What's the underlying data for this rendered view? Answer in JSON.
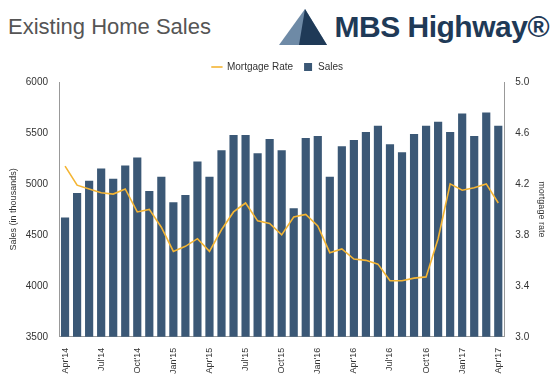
{
  "chart_data": {
    "type": "bar",
    "title": "Existing Home Sales",
    "logo": "MBS Highway®",
    "categories": [
      "Apr'14",
      null,
      null,
      "Jul'14",
      null,
      null,
      "Oct'14",
      null,
      null,
      "Jan'15",
      null,
      null,
      "Apr'15",
      null,
      null,
      "Jul'15",
      null,
      null,
      "Oct'15",
      null,
      null,
      "Jan'16",
      null,
      null,
      "Apr'16",
      null,
      null,
      "Jul'16",
      null,
      null,
      "Oct'16",
      null,
      null,
      "Jan'17",
      null,
      null,
      "Apr'17"
    ],
    "series": [
      {
        "name": "Sales",
        "type": "bar",
        "color": "#3b5876",
        "values": [
          4670,
          4910,
          5030,
          5150,
          5050,
          5180,
          5260,
          4930,
          5070,
          4820,
          4890,
          5220,
          5070,
          5330,
          5480,
          5480,
          5300,
          5440,
          5330,
          4760,
          5450,
          5470,
          5070,
          5370,
          5430,
          5510,
          5570,
          5390,
          5310,
          5490,
          5570,
          5610,
          5510,
          5690,
          5470,
          5700,
          5570
        ]
      },
      {
        "name": "Mortgage Rate",
        "type": "line",
        "color": "#f4b534",
        "axis": "y2",
        "values": [
          4.34,
          4.19,
          4.16,
          4.13,
          4.12,
          4.16,
          3.98,
          4.0,
          3.86,
          3.67,
          3.71,
          3.77,
          3.67,
          3.84,
          3.98,
          4.05,
          3.91,
          3.89,
          3.8,
          3.94,
          3.96,
          3.87,
          3.66,
          3.69,
          3.61,
          3.6,
          3.57,
          3.44,
          3.44,
          3.46,
          3.47,
          3.77,
          4.2,
          4.15,
          4.17,
          4.2,
          4.05
        ]
      }
    ],
    "y_label": "Sales (in thousands)",
    "y2_label": "mortgage rate",
    "ylim": [
      3500,
      6000
    ],
    "yticks": [
      3500,
      4000,
      4500,
      5000,
      5500,
      6000
    ],
    "y2lim": [
      3.0,
      5.0
    ],
    "y2ticks": [
      {
        "value": 3.0,
        "label": "3.0"
      },
      3.4,
      3.8,
      4.2,
      4.6,
      {
        "value": 5.0,
        "label": "5.0"
      }
    ],
    "grid": false,
    "legend": "top"
  }
}
